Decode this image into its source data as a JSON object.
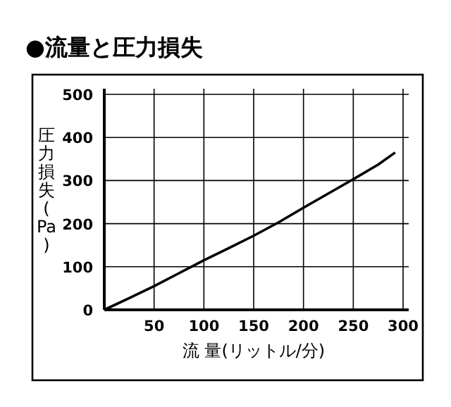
{
  "chart_data": {
    "type": "line",
    "title": "●流量と圧力損失",
    "xlabel": "流 量(リットル/分)",
    "ylabel": "圧力損失(Pa)",
    "x": [
      0,
      25,
      50,
      75,
      100,
      125,
      150,
      175,
      200,
      225,
      250,
      275,
      292
    ],
    "series": [
      {
        "color": "#000000",
        "values": [
          0,
          27,
          55,
          85,
          115,
          143,
          172,
          203,
          237,
          270,
          303,
          337,
          365
        ]
      }
    ],
    "xlim": [
      0,
      300
    ],
    "ylim": [
      0,
      500
    ],
    "xticks": [
      {
        "value": 0,
        "label": null
      },
      50,
      100,
      150,
      200,
      250,
      300
    ],
    "yticks": [
      0,
      100,
      200,
      300,
      400,
      500
    ],
    "grid": true
  }
}
